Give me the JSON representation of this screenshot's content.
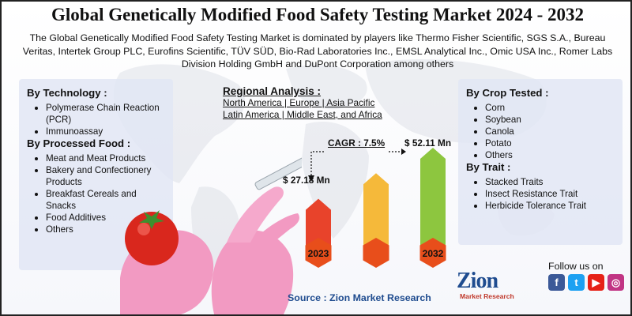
{
  "title": "Global Genetically Modified Food Safety Testing Market 2024 - 2032",
  "subtitle": "The Global Genetically Modified Food Safety Testing Market is dominated by players like Thermo Fisher Scientific, SGS S.A., Bureau Veritas, Intertek Group PLC, Eurofins Scientific, TÜV SÜD, Bio-Rad Laboratories Inc., EMSL Analytical Inc., Omic USA Inc., Romer Labs Division Holding GmbH and DuPont Corporation among others",
  "left_panel": {
    "technology": {
      "heading": "By Technology :",
      "items": [
        "Polymerase Chain Reaction (PCR)",
        "Immunoassay"
      ]
    },
    "processed_food": {
      "heading": "By Processed Food :",
      "items": [
        "Meat and Meat Products",
        "Bakery and Confectionery Products",
        "Breakfast Cereals and Snacks",
        "Food Additives",
        "Others"
      ]
    }
  },
  "right_panel": {
    "crop": {
      "heading": "By Crop Tested :",
      "items": [
        "Corn",
        "Soybean",
        "Canola",
        "Potato",
        "Others"
      ]
    },
    "trait": {
      "heading": "By Trait :",
      "items": [
        "Stacked Traits",
        "Insect Resistance Trait",
        "Herbicide Tolerance Trait"
      ]
    }
  },
  "regional": {
    "heading": "Regional Analysis :",
    "line1": "North America | Europe | Asia Pacific",
    "line2": "Latin America | Middle East, and Africa"
  },
  "chart_data": {
    "type": "bar",
    "categories": [
      "2023",
      "",
      "2032"
    ],
    "values": [
      27.18,
      null,
      52.11
    ],
    "value_labels": [
      "$ 27.18 Mn",
      "",
      "$ 52.11 Mn"
    ],
    "cagr_label": "CAGR : 7.5%",
    "bar_colors": [
      "#e8432b",
      "#f5b93a",
      "#8dc63f"
    ],
    "badge_color": "#e84e1b"
  },
  "source": "Source : Zion Market Research",
  "follow": "Follow us on",
  "logo": {
    "name": "Zion",
    "sub": "Market Research"
  },
  "social_icons": [
    "facebook-icon",
    "twitter-icon",
    "youtube-icon",
    "instagram-icon"
  ]
}
